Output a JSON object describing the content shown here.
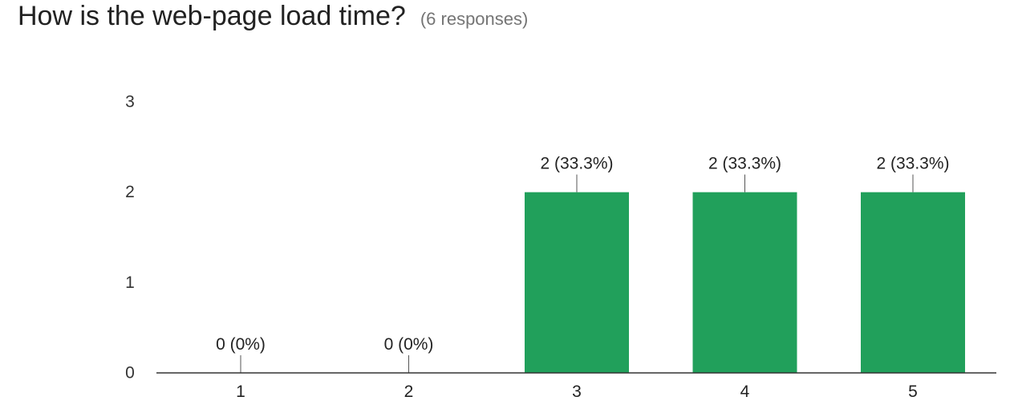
{
  "question": {
    "title": "How is the web-page load time?",
    "responses": "(6 responses)"
  },
  "colors": {
    "bar": "#21a05b",
    "axis": "#333333",
    "label": "#222222",
    "leader": "#555555"
  },
  "chart_data": {
    "type": "bar",
    "categories": [
      "1",
      "2",
      "3",
      "4",
      "5"
    ],
    "values": [
      0,
      0,
      2,
      2,
      2
    ],
    "data_labels": [
      "0 (0%)",
      "0 (0%)",
      "2 (33.3%)",
      "2 (33.3%)",
      "2 (33.3%)"
    ],
    "y_ticks": [
      0,
      1,
      2,
      3
    ],
    "ylim": [
      0,
      3
    ],
    "grid": false,
    "legend": "none"
  }
}
